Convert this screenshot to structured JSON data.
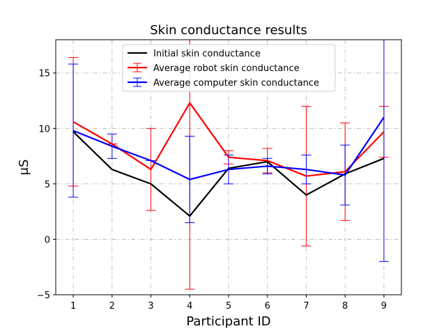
{
  "chart_data": {
    "type": "line",
    "title": "Skin conductance results",
    "xlabel": "Participant ID",
    "ylabel": "μS",
    "x": [
      1,
      2,
      3,
      4,
      5,
      6,
      7,
      8,
      9
    ],
    "xlim": [
      0.55,
      9.45
    ],
    "ylim": [
      -5,
      18
    ],
    "yticks": [
      -5,
      0,
      5,
      10,
      15
    ],
    "grid": true,
    "grid_style": "dashdot",
    "legend_position": "top-center",
    "series": [
      {
        "name": "Initial skin conductance",
        "color": "#000000",
        "values": [
          9.7,
          6.3,
          5.0,
          2.1,
          6.4,
          7.0,
          4.0,
          5.9,
          7.3
        ],
        "error": null
      },
      {
        "name": "Average robot skin conductance",
        "color": "#ff0000",
        "values": [
          10.6,
          8.6,
          6.3,
          12.3,
          7.4,
          7.1,
          5.7,
          6.1,
          9.7
        ],
        "error": [
          5.8,
          0.0,
          3.7,
          16.8,
          0.6,
          1.1,
          6.3,
          4.4,
          2.3
        ]
      },
      {
        "name": "Average computer skin conductance",
        "color": "#0000ff",
        "values": [
          9.8,
          8.4,
          7.1,
          5.4,
          6.3,
          6.6,
          6.3,
          5.8,
          11.0
        ],
        "error": [
          6.0,
          1.1,
          0.0,
          3.9,
          1.3,
          0.7,
          1.3,
          2.7,
          13.0
        ]
      }
    ]
  }
}
